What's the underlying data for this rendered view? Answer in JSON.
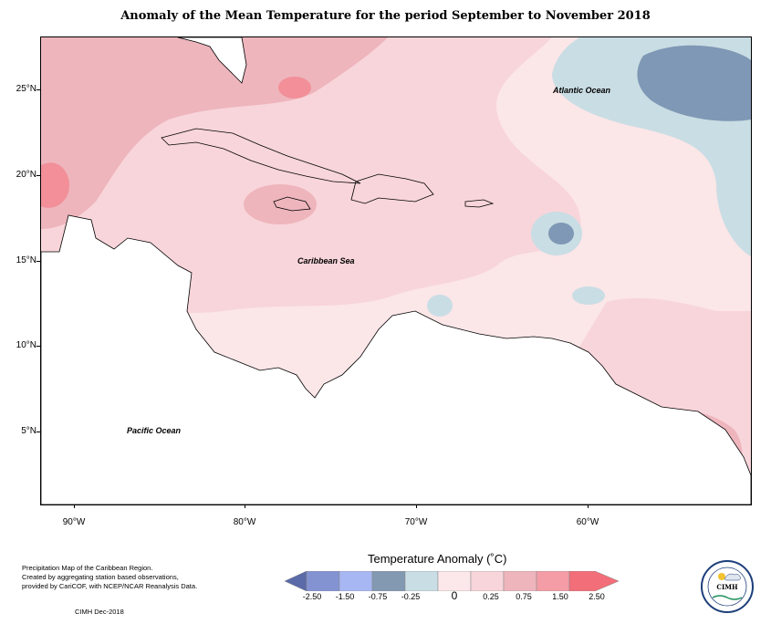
{
  "title": "Anomaly of the Mean Temperature for the period September to November 2018",
  "map": {
    "latitude_labels": [
      "25°N",
      "20°N",
      "15°N",
      "10°N",
      "5°N"
    ],
    "longitude_labels": [
      "90°W",
      "80°W",
      "70°W",
      "60°W"
    ],
    "ocean_labels": {
      "atlantic": "Atlantic Ocean",
      "caribbean": "Caribbean Sea",
      "pacific": "Pacific Ocean"
    },
    "colors": {
      "land_white": "#ffffff",
      "pale_pink": "#fbe6e8",
      "light_pink": "#f8d5da",
      "medium_pink": "#eeb5bd",
      "dark_pink": "#f28f98",
      "light_blue": "#c9dde4",
      "steel_blue": "#7f98b5"
    }
  },
  "legend": {
    "title": "Temperature Anomaly (˚C)",
    "labels": [
      "-2.50",
      "-1.50",
      "-0.75",
      "-0.25",
      "0",
      "0.25",
      "0.75",
      "1.50",
      "2.50"
    ],
    "colors": [
      "#5b6aa8",
      "#8393d2",
      "#a7b7f3",
      "#8399b2",
      "#c9dde4",
      "#fce8ea",
      "#f8d5da",
      "#eeb5bd",
      "#f49da7",
      "#f26e78"
    ]
  },
  "footer": {
    "line1": "Precipitation Map of the Caribbean Region.",
    "line2": "Created by aggregating station based observations,",
    "line3": "provided by CariCOF, with NCEP/NCAR Reanalysis Data.",
    "credit": "CIMH Dec-2018"
  },
  "logo": {
    "text": "CIMH",
    "icon": "cimh-logo-icon"
  }
}
